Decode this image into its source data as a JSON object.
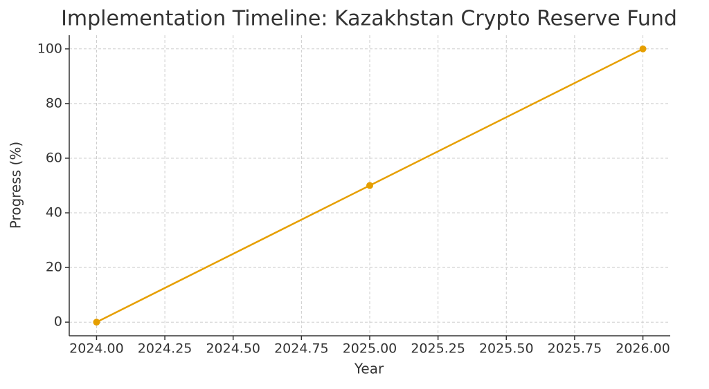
{
  "chart_data": {
    "type": "line",
    "title": "Implementation Timeline: Kazakhstan Crypto Reserve Fund",
    "x_label": "Year",
    "y_label": "Progress (%)",
    "x": [
      2024,
      2025,
      2026
    ],
    "series": [
      {
        "name": "Progress",
        "color": "#e69f00",
        "values": [
          0,
          50,
          100
        ]
      }
    ],
    "xlim": [
      2023.9,
      2026.1
    ],
    "ylim": [
      -5,
      105
    ],
    "xticks": [
      {
        "value": 2024,
        "label": "2024.00"
      },
      2024.25,
      {
        "value": 2024.5,
        "label": "2024.50"
      },
      2024.75,
      {
        "value": 2025,
        "label": "2025.00"
      },
      2025.25,
      {
        "value": 2025.5,
        "label": "2025.50"
      },
      2025.75,
      {
        "value": 2026,
        "label": "2026.00"
      }
    ],
    "yticks": [
      0,
      20,
      40,
      60,
      80,
      100
    ],
    "grid": true
  }
}
